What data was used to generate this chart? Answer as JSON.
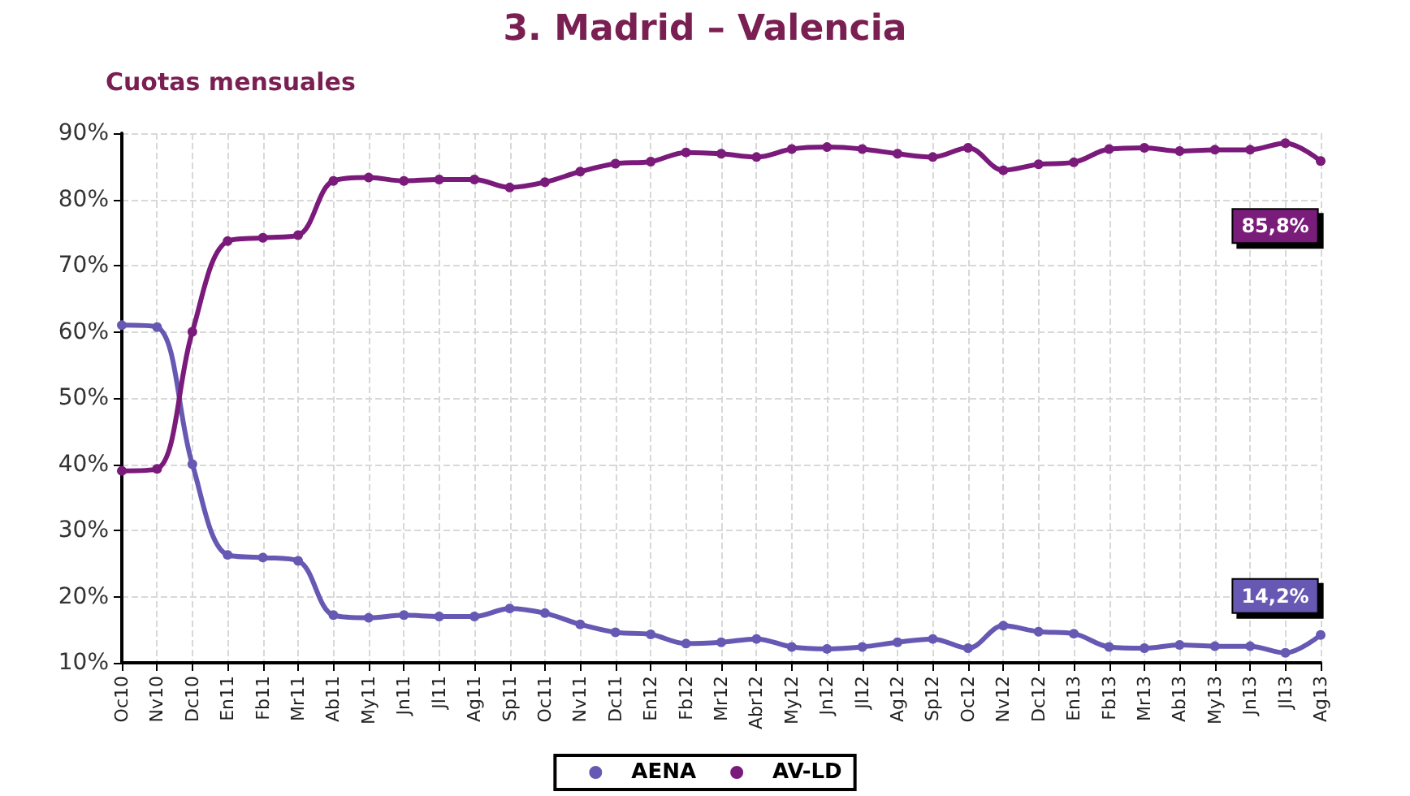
{
  "chart_data": {
    "type": "line",
    "title": "3. Madrid – Valencia",
    "subtitle": "Cuotas mensuales",
    "categories": [
      "Oc10",
      "Nv10",
      "Dc10",
      "En11",
      "Fb11",
      "Mr11",
      "Ab11",
      "My11",
      "Jn11",
      "Jl11",
      "Ag11",
      "Sp11",
      "Oc11",
      "Nv11",
      "Dc11",
      "En12",
      "Fb12",
      "Mr12",
      "Abr12",
      "My12",
      "Jn12",
      "Jl12",
      "Ag12",
      "Sp12",
      "Oc12",
      "Nv12",
      "Dc12",
      "En13",
      "Fb13",
      "Mr13",
      "Ab13",
      "My13",
      "Jn13",
      "Jl13",
      "Ag13"
    ],
    "series": [
      {
        "name": "AENA",
        "color": "#6659b3",
        "values": [
          61,
          60.7,
          40,
          26.3,
          25.9,
          25.4,
          17.2,
          16.8,
          17.2,
          17,
          17,
          18.2,
          17.5,
          15.8,
          14.6,
          14.3,
          12.9,
          13.1,
          13.6,
          12.4,
          12.1,
          12.4,
          13.1,
          13.6,
          12.2,
          15.6,
          14.7,
          14.4,
          12.4,
          12.2,
          12.7,
          12.5,
          12.5,
          11.5,
          14.2
        ],
        "value_labels": [
          null,
          null,
          null,
          null,
          null,
          null,
          null,
          null,
          null,
          null,
          null,
          null,
          null,
          null,
          null,
          null,
          null,
          null,
          null,
          null,
          null,
          null,
          null,
          null,
          null,
          null,
          null,
          null,
          null,
          null,
          null,
          null,
          null,
          null,
          "14,2%"
        ]
      },
      {
        "name": "AV-LD",
        "color": "#7a1a7a",
        "values": [
          39,
          39.3,
          60,
          73.7,
          74.2,
          74.6,
          82.8,
          83.3,
          82.8,
          83,
          83,
          81.8,
          82.6,
          84.2,
          85.4,
          85.7,
          87.1,
          86.9,
          86.4,
          87.6,
          87.9,
          87.6,
          86.9,
          86.4,
          87.8,
          84.4,
          85.3,
          85.6,
          87.6,
          87.8,
          87.3,
          87.5,
          87.5,
          88.5,
          85.8
        ],
        "value_labels": [
          null,
          null,
          null,
          null,
          null,
          null,
          null,
          null,
          null,
          null,
          null,
          null,
          null,
          null,
          null,
          null,
          null,
          null,
          null,
          null,
          null,
          null,
          null,
          null,
          null,
          null,
          null,
          null,
          null,
          null,
          null,
          null,
          null,
          null,
          "85,8%"
        ]
      }
    ],
    "ylim": [
      10,
      90
    ],
    "yticks": [
      {
        "value": 10,
        "label": "10%"
      },
      {
        "value": 20,
        "label": "20%"
      },
      {
        "value": 30,
        "label": "30%"
      },
      {
        "value": 40,
        "label": "40%"
      },
      {
        "value": 50,
        "label": "50%"
      },
      {
        "value": 60,
        "label": "60%"
      },
      {
        "value": 70,
        "label": "70%"
      },
      {
        "value": 80,
        "label": "80%"
      },
      {
        "value": 90,
        "label": "90%"
      }
    ],
    "grid": true,
    "legend": "bottom",
    "marker": "circle",
    "line_style": "solid"
  }
}
